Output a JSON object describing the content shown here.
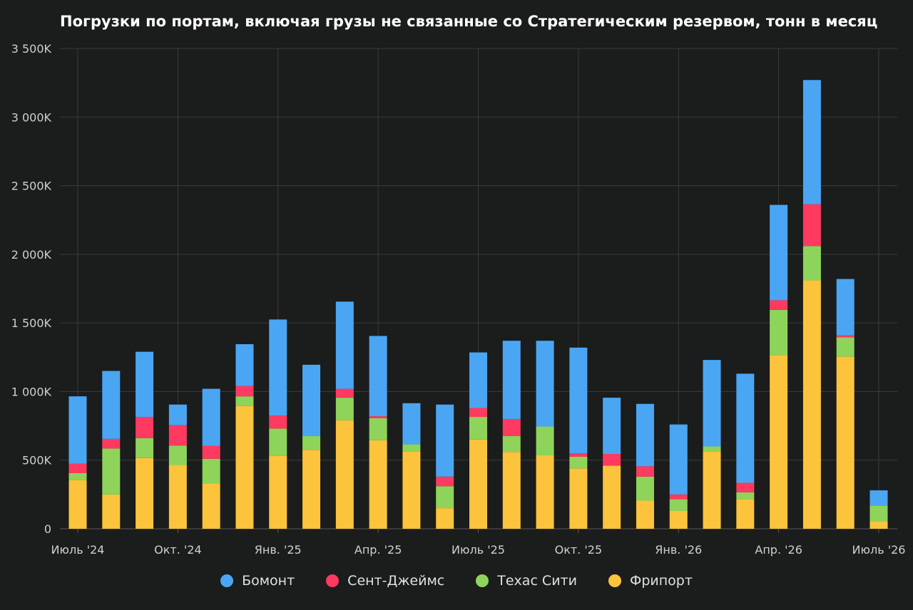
{
  "chart_data": {
    "type": "bar",
    "stacked": true,
    "title": "Погрузки по портам, включая грузы не связанные со Стратегическим резервом, тонн в месяц",
    "xlabel": "",
    "ylabel": "",
    "ylim": [
      0,
      3500000
    ],
    "y_ticks": [
      {
        "value": 0,
        "label": "0"
      },
      {
        "value": 500000,
        "label": "500K"
      },
      {
        "value": 1000000,
        "label": "1 000K"
      },
      {
        "value": 1500000,
        "label": "1 500K"
      },
      {
        "value": 2000000,
        "label": "2 000K"
      },
      {
        "value": 2500000,
        "label": "2 500K"
      },
      {
        "value": 3000000,
        "label": "3 000K"
      },
      {
        "value": 3500000,
        "label": "3 500K"
      }
    ],
    "categories": [
      "2024-07",
      "2024-08",
      "2024-09",
      "2024-10",
      "2024-11",
      "2024-12",
      "2025-01",
      "2025-02",
      "2025-03",
      "2025-04",
      "2025-05",
      "2025-06",
      "2025-07",
      "2025-08",
      "2025-09",
      "2025-10",
      "2025-11",
      "2025-12",
      "2026-01",
      "2026-02",
      "2026-03",
      "2026-04",
      "2026-05",
      "2026-06",
      "2026-07"
    ],
    "x_ticks": [
      {
        "index": 0,
        "label": "Июль '24"
      },
      {
        "index": 3,
        "label": "Окт. '24"
      },
      {
        "index": 6,
        "label": "Янв. '25"
      },
      {
        "index": 9,
        "label": "Апр. '25"
      },
      {
        "index": 12,
        "label": "Июль '25"
      },
      {
        "index": 15,
        "label": "Окт. '25"
      },
      {
        "index": 18,
        "label": "Янв. '26"
      },
      {
        "index": 21,
        "label": "Апр. '26"
      },
      {
        "index": 24,
        "label": "Июль '26"
      }
    ],
    "grid": true,
    "legend_position": "bottom",
    "series": [
      {
        "name": "Фрипорт",
        "color": "#fcc43c",
        "values": [
          355000,
          250000,
          515000,
          465000,
          330000,
          895000,
          530000,
          575000,
          790000,
          645000,
          565000,
          150000,
          650000,
          560000,
          535000,
          440000,
          460000,
          205000,
          130000,
          565000,
          215000,
          1265000,
          1810000,
          1255000,
          55000
        ]
      },
      {
        "name": "Техас Сити",
        "color": "#8ed45a",
        "values": [
          50000,
          335000,
          145000,
          140000,
          180000,
          70000,
          200000,
          100000,
          165000,
          160000,
          50000,
          160000,
          165000,
          115000,
          210000,
          85000,
          0,
          175000,
          85000,
          35000,
          50000,
          330000,
          250000,
          140000,
          115000
        ]
      },
      {
        "name": "Сент-Джеймс",
        "color": "#ff3a60",
        "values": [
          70000,
          70000,
          155000,
          150000,
          95000,
          75000,
          95000,
          0,
          65000,
          15000,
          0,
          70000,
          65000,
          125000,
          0,
          25000,
          85000,
          75000,
          35000,
          0,
          70000,
          70000,
          305000,
          15000,
          0
        ]
      },
      {
        "name": "Бомонт",
        "color": "#4aa6f2",
        "values": [
          490000,
          495000,
          475000,
          150000,
          415000,
          305000,
          700000,
          520000,
          635000,
          585000,
          300000,
          525000,
          405000,
          570000,
          625000,
          770000,
          410000,
          455000,
          510000,
          630000,
          795000,
          695000,
          905000,
          410000,
          110000
        ]
      }
    ],
    "legend_order": [
      "Бомонт",
      "Сент-Джеймс",
      "Техас Сити",
      "Фрипорт"
    ]
  }
}
